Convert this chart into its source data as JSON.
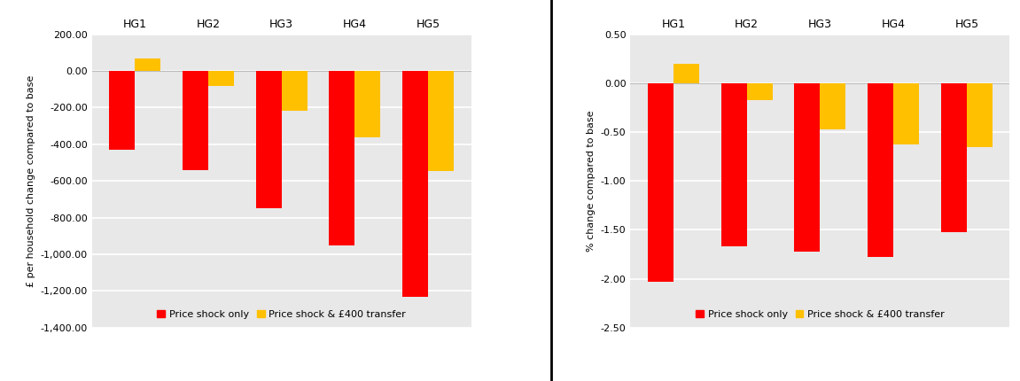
{
  "categories": [
    "HG1",
    "HG2",
    "HG3",
    "HG4",
    "HG5"
  ],
  "left": {
    "ylabel": "£ per household change compared to base",
    "ylim": [
      -1400,
      200
    ],
    "yticks": [
      200,
      0,
      -200,
      -400,
      -600,
      -800,
      -1000,
      -1200,
      -1400
    ],
    "red_values": [
      -430,
      -540,
      -750,
      -950,
      -1230
    ],
    "gold_values": [
      70,
      -80,
      -215,
      -360,
      -545
    ]
  },
  "right": {
    "ylabel": "% change compared to base",
    "ylim": [
      -2.5,
      0.5
    ],
    "yticks": [
      0.5,
      0.0,
      -0.5,
      -1.0,
      -1.5,
      -2.0,
      -2.5
    ],
    "red_values": [
      -2.03,
      -1.67,
      -1.72,
      -1.78,
      -1.52
    ],
    "gold_values": [
      0.2,
      -0.17,
      -0.47,
      -0.63,
      -0.65
    ]
  },
  "red_color": "#FF0000",
  "gold_color": "#FFC000",
  "bar_width": 0.35,
  "plot_bg_color": "#E8E8E8",
  "fig_bg_color": "#FFFFFF",
  "grid_color": "#FFFFFF",
  "legend_labels": [
    "Price shock only",
    "Price shock & £400 transfer"
  ],
  "label_fontsize": 8,
  "tick_fontsize": 8,
  "cat_fontsize": 9
}
